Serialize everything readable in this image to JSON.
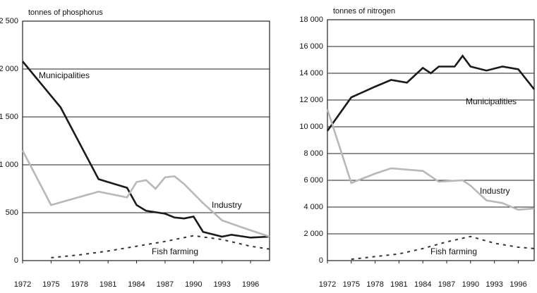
{
  "chart_data": [
    {
      "type": "line",
      "ylabel": "tonnes of phosphorus",
      "xlim": [
        1972,
        1998
      ],
      "xticks": [
        1972,
        1975,
        1978,
        1981,
        1984,
        1987,
        1990,
        1993,
        1996
      ],
      "ylim": [
        0,
        2500
      ],
      "yticks": [
        0,
        500,
        {
          "value": 1000,
          "label": "1 000"
        },
        {
          "value": 1500,
          "label": "1 500"
        },
        {
          "value": 2000,
          "label": "2 000"
        },
        {
          "value": 2500,
          "label": "2 500"
        }
      ],
      "grid": true,
      "series": [
        {
          "name": "Municipalities",
          "color": "#1a1a1a",
          "style": "solid",
          "x": [
            1972,
            1976,
            1980,
            1983,
            1984,
            1985,
            1987,
            1988,
            1989,
            1990,
            1991,
            1993,
            1994,
            1996,
            1998
          ],
          "values": [
            2080,
            1600,
            850,
            760,
            580,
            520,
            490,
            450,
            440,
            460,
            300,
            250,
            270,
            240,
            250
          ]
        },
        {
          "name": "Industry",
          "color": "#b8b8b8",
          "style": "solid",
          "x": [
            1972,
            1975,
            1980,
            1983,
            1984,
            1985,
            1986,
            1987,
            1988,
            1989,
            1991,
            1993,
            1995,
            1998
          ],
          "values": [
            1150,
            580,
            720,
            660,
            820,
            840,
            750,
            870,
            880,
            800,
            600,
            420,
            350,
            250
          ]
        },
        {
          "name": "Fish farming",
          "color": "#333333",
          "style": "dashed",
          "x": [
            1975,
            1978,
            1981,
            1984,
            1987,
            1990,
            1993,
            1996,
            1998
          ],
          "values": [
            30,
            60,
            100,
            150,
            200,
            260,
            220,
            150,
            120
          ]
        }
      ]
    },
    {
      "type": "line",
      "ylabel": "tonnes of nitrogen",
      "xlim": [
        1972,
        1998
      ],
      "xticks": [
        1972,
        1975,
        1978,
        1981,
        1984,
        1987,
        1990,
        1993,
        1996
      ],
      "ylim": [
        0,
        18000
      ],
      "yticks": [
        0,
        {
          "value": 2000,
          "label": "2 000"
        },
        {
          "value": 4000,
          "label": "4 000"
        },
        {
          "value": 6000,
          "label": "6 000"
        },
        {
          "value": 8000,
          "label": "8 000"
        },
        {
          "value": 10000,
          "label": "10 000"
        },
        {
          "value": 12000,
          "label": "12 000"
        },
        {
          "value": 14000,
          "label": "14 000"
        },
        {
          "value": 16000,
          "label": "16 000"
        },
        {
          "value": 18000,
          "label": "18 000"
        }
      ],
      "grid": true,
      "series": [
        {
          "name": "Municipalities",
          "color": "#1a1a1a",
          "style": "solid",
          "x": [
            1972,
            1975,
            1978,
            1980,
            1982,
            1984,
            1985,
            1986,
            1988,
            1989,
            1990,
            1992,
            1994,
            1996,
            1998
          ],
          "values": [
            9700,
            12200,
            13000,
            13500,
            13300,
            14400,
            14000,
            14500,
            14500,
            15300,
            14500,
            14200,
            14500,
            14300,
            12800
          ]
        },
        {
          "name": "Industry",
          "color": "#b8b8b8",
          "style": "solid",
          "x": [
            1972,
            1975,
            1978,
            1980,
            1984,
            1986,
            1989,
            1990,
            1992,
            1994,
            1996,
            1998
          ],
          "values": [
            11300,
            5800,
            6500,
            6900,
            6700,
            5900,
            6000,
            5600,
            4500,
            4300,
            3800,
            3900
          ]
        },
        {
          "name": "Fish farming",
          "color": "#333333",
          "style": "dashed",
          "x": [
            1975,
            1978,
            1981,
            1984,
            1987,
            1990,
            1993,
            1996,
            1998
          ],
          "values": [
            100,
            300,
            500,
            900,
            1400,
            1800,
            1300,
            1000,
            900
          ]
        }
      ]
    }
  ]
}
